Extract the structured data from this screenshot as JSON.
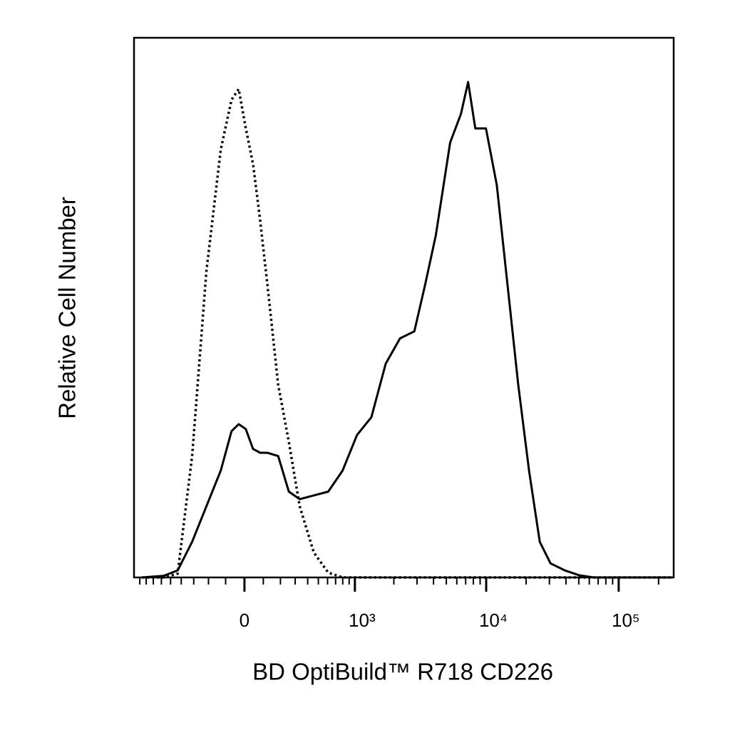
{
  "chart_data": {
    "type": "line",
    "xlabel": "BD OptiBuild™ R718 CD226",
    "ylabel": "Relative Cell Number",
    "xscale": "biexponential",
    "xlim": [
      -1000,
      260000
    ],
    "ylim": [
      0,
      100
    ],
    "xticks": [
      0,
      {
        "value": 1000,
        "label": "10³"
      },
      {
        "value": 10000,
        "label": "10⁴"
      },
      {
        "value": 100000,
        "label": "10⁵"
      }
    ],
    "xminorticks": [
      -900,
      -800,
      -700,
      -600,
      -500,
      -400,
      -300,
      -200,
      -100,
      100,
      200,
      300,
      400,
      500,
      600,
      700,
      800,
      900,
      2000,
      3000,
      4000,
      5000,
      6000,
      7000,
      8000,
      9000,
      20000,
      30000,
      40000,
      50000,
      60000,
      70000,
      80000,
      90000,
      200000
    ],
    "x": [
      -864,
      -575,
      -432,
      -312,
      -213,
      -127,
      -68,
      -30,
      7,
      45,
      83,
      123,
      186,
      255,
      334,
      456,
      608,
      798,
      1039,
      1345,
      1732,
      2229,
      2863,
      3453,
      4164,
      5346,
      6450,
      7305,
      8280,
      9960,
      12030,
      14490,
      17460,
      21060,
      25380,
      30600,
      39270,
      50400,
      64700,
      83070,
      120600,
      254100
    ],
    "series": [
      {
        "color": "#000000",
        "dashed": false,
        "values": [
          0,
          0.3,
          1.3,
          6.6,
          13.2,
          19.8,
          27.1,
          28.4,
          27.5,
          23.8,
          23.1,
          23.1,
          22.5,
          15.9,
          14.5,
          15.2,
          15.9,
          19.8,
          26.4,
          29.7,
          39.6,
          44.3,
          45.6,
          54.2,
          63.4,
          80.6,
          85.9,
          91.8,
          83.2,
          83.2,
          72.7,
          54.2,
          35.7,
          19.8,
          6.6,
          2.6,
          1.3,
          0.4,
          0,
          0,
          0,
          0
        ]
      },
      {
        "color": "#000000",
        "dashed": true,
        "values": [
          0,
          0,
          0.7,
          22.5,
          56.8,
          79.3,
          88.5,
          90.5,
          83.2,
          76.6,
          66.1,
          54.2,
          35.7,
          25.1,
          13.2,
          4.6,
          0.9,
          0,
          0,
          0,
          0,
          0,
          0,
          0,
          0,
          0,
          0,
          0,
          0,
          0,
          0,
          0,
          0,
          0,
          0,
          0,
          0,
          0,
          0,
          0,
          0,
          0
        ]
      }
    ]
  }
}
